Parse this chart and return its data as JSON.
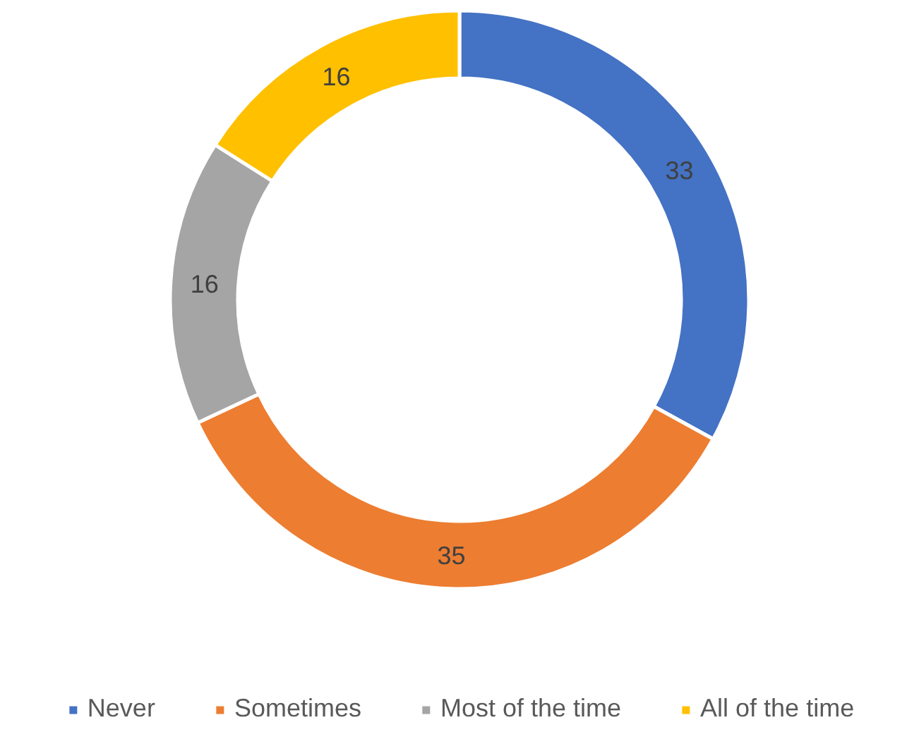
{
  "chart_data": {
    "type": "donut",
    "categories": [
      "Never",
      "Sometimes",
      "Most of the time",
      "All of the time"
    ],
    "values": [
      33,
      35,
      16,
      16
    ],
    "colors": [
      "#4472c4",
      "#ed7d31",
      "#a5a5a5",
      "#ffc000"
    ],
    "data_labels": true,
    "legend": "bottom"
  }
}
